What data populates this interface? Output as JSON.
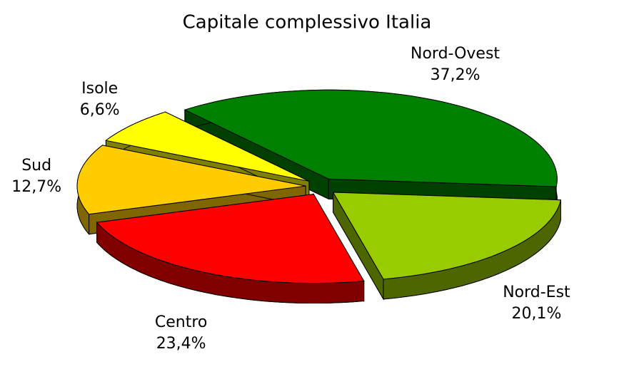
{
  "chart_data": {
    "type": "pie3d",
    "title": "Capitale complessivo Italia",
    "categories": [
      "Nord-Ovest",
      "Nord-Est",
      "Centro",
      "Sud",
      "Isole"
    ],
    "values": [
      37.2,
      20.1,
      23.4,
      12.7,
      6.6
    ],
    "value_labels": [
      "37,2%",
      "20,1%",
      "23,4%",
      "12,7%",
      "6,6%"
    ],
    "colors": [
      "#008000",
      "#99cc00",
      "#ff0000",
      "#ffcc00",
      "#ffff00"
    ]
  }
}
